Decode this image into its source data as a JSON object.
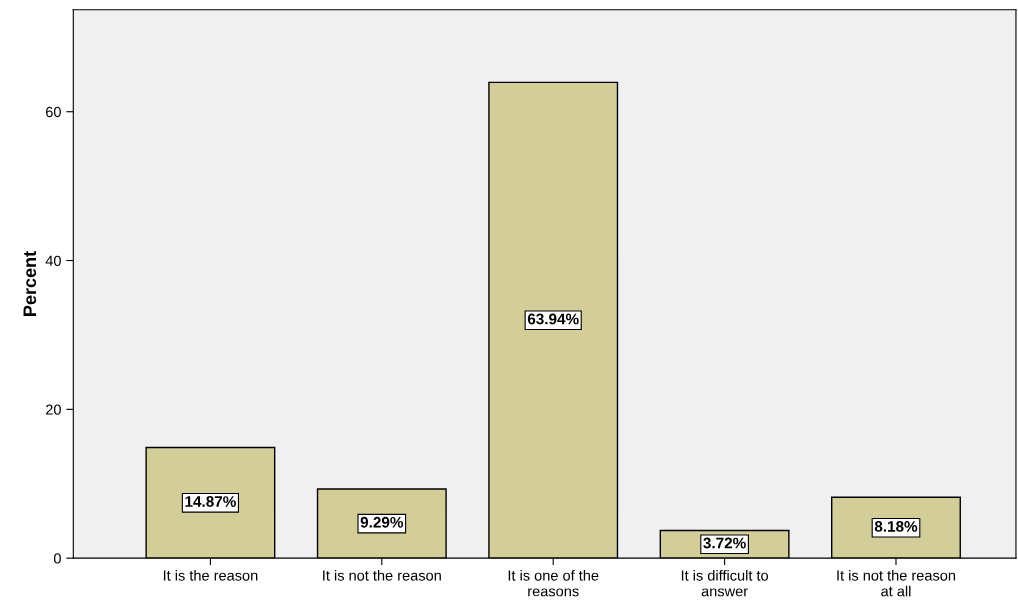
{
  "chart_data": {
    "type": "bar",
    "ylabel": "Percent",
    "categories": [
      "It is the reason",
      "It is not the reason",
      "It is one of the\nreasons",
      "It is difficult to\nanswer",
      "It is not the reason\nat all"
    ],
    "values": [
      14.87,
      9.29,
      63.94,
      3.72,
      8.18
    ],
    "value_labels": [
      "14.87%",
      "9.29%",
      "63.94%",
      "3.72%",
      "8.18%"
    ],
    "color": "#d3ce97",
    "ylim": [
      0,
      73.7
    ],
    "yticks": [
      0,
      20,
      40,
      60
    ],
    "grid": false,
    "legend": false
  }
}
